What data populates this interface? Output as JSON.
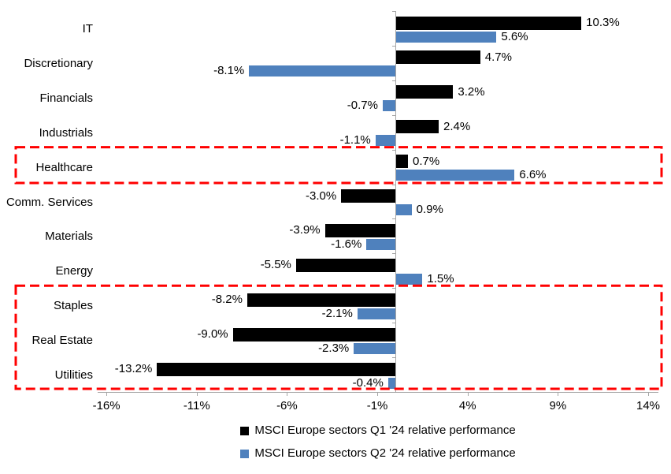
{
  "chart_data": {
    "type": "bar",
    "orientation": "horizontal",
    "title": "",
    "xlabel": "",
    "ylabel": "",
    "grid": false,
    "legend_position": "bottom",
    "data_labels": true,
    "value_suffix": "%",
    "categories": [
      "IT",
      "Discretionary",
      "Financials",
      "Industrials",
      "Healthcare",
      "Comm. Services",
      "Materials",
      "Energy",
      "Staples",
      "Real Estate",
      "Utilities"
    ],
    "series": [
      {
        "name": "MSCI Europe sectors Q1 '24 relative performance",
        "color": "#000000",
        "values": [
          10.3,
          4.7,
          3.2,
          2.4,
          0.7,
          -3.0,
          -3.9,
          -5.5,
          -8.2,
          -9.0,
          -13.2
        ]
      },
      {
        "name": "MSCI Europe sectors Q2 '24 relative performance",
        "color": "#4f81bd",
        "values": [
          5.6,
          -8.1,
          -0.7,
          -1.1,
          6.6,
          0.9,
          -1.6,
          1.5,
          -2.1,
          -2.3,
          -0.4
        ]
      }
    ],
    "x_ticks": [
      {
        "label": "-16%",
        "value": -16
      },
      {
        "label": "-11%",
        "value": -11
      },
      {
        "label": "-6%",
        "value": -6
      },
      {
        "label": "-1%",
        "value": -1
      },
      {
        "label": "4%",
        "value": 4
      },
      {
        "label": "9%",
        "value": 9
      },
      {
        "label": "14%",
        "value": 14
      }
    ],
    "xlim": [
      -16.5,
      14.6
    ],
    "axis_color": "#a6a6a6",
    "highlights": [
      {
        "name": "healthcare-highlight",
        "first_category": "Healthcare",
        "last_category": "Healthcare",
        "color": "#ff0000"
      },
      {
        "name": "defensives-highlight",
        "first_category": "Staples",
        "last_category": "Utilities",
        "color": "#ff0000"
      }
    ]
  }
}
